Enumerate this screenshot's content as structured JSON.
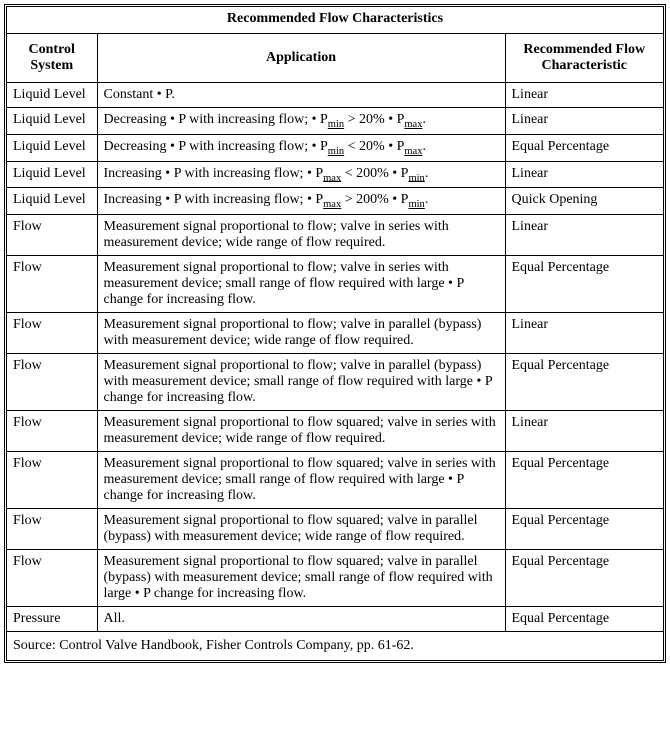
{
  "title": "Recommended Flow Characteristics",
  "columns": {
    "system": "Control\nSystem",
    "application": "Application",
    "characteristic": "Recommended Flow\nCharacteristic"
  },
  "rows": [
    {
      "system": "Liquid Level",
      "application": "Constant • P.",
      "characteristic": "Linear"
    },
    {
      "system": "Liquid Level",
      "application": "Decreasing • P with increasing flow; • P<sub class=\"sub\">min</sub> &gt; 20% • P<sub class=\"sub\">max</sub>.",
      "characteristic": "Linear"
    },
    {
      "system": "Liquid Level",
      "application": "Decreasing • P with increasing flow; • P<sub class=\"sub\">min</sub> &lt; 20% • P<sub class=\"sub\">max</sub>.",
      "characteristic": "Equal Percentage"
    },
    {
      "system": "Liquid Level",
      "application": "Increasing • P with increasing flow; • P<sub class=\"sub\">max</sub> &lt; 200% • P<sub class=\"sub\">min</sub>.",
      "characteristic": "Linear"
    },
    {
      "system": "Liquid Level",
      "application": "Increasing • P with increasing flow; • P<sub class=\"sub\">max</sub> &gt; 200% • P<sub class=\"sub\">min</sub>.",
      "characteristic": "Quick Opening"
    },
    {
      "system": "Flow",
      "application": "Measurement signal proportional to flow; valve in series with measurement device; wide range of flow required.",
      "characteristic": "Linear"
    },
    {
      "system": "Flow",
      "application": "Measurement signal proportional to flow; valve in series with measurement device; small range of flow required with large • P change for increasing flow.",
      "characteristic": "Equal Percentage"
    },
    {
      "system": "Flow",
      "application": "Measurement signal proportional to flow; valve in parallel (bypass) with measurement device; wide range of flow required.",
      "characteristic": "Linear"
    },
    {
      "system": "Flow",
      "application": "Measurement signal proportional to flow; valve in parallel (bypass) with measurement device; small range of flow required with large • P change for increasing flow.",
      "characteristic": "Equal Percentage"
    },
    {
      "system": "Flow",
      "application": "Measurement signal proportional to flow squared; valve in series with measurement device; wide range of flow required.",
      "characteristic": "Linear"
    },
    {
      "system": "Flow",
      "application": "Measurement signal proportional to flow squared; valve in series with measurement device; small range of flow required with large • P change for increasing flow.",
      "characteristic": "Equal Percentage"
    },
    {
      "system": "Flow",
      "application": "Measurement signal proportional to flow squared; valve in parallel (bypass) with measurement device; wide range of flow required.",
      "characteristic": "Equal Percentage"
    },
    {
      "system": "Flow",
      "application": "Measurement signal proportional to flow squared; valve in parallel (bypass) with measurement device; small range of flow required with large • P change for increasing flow.",
      "characteristic": "Equal Percentage"
    },
    {
      "system": "Pressure",
      "application": "All.",
      "characteristic": "Equal Percentage"
    }
  ],
  "source": "Source:   Control Valve Handbook, Fisher Controls Company, pp. 61-62."
}
